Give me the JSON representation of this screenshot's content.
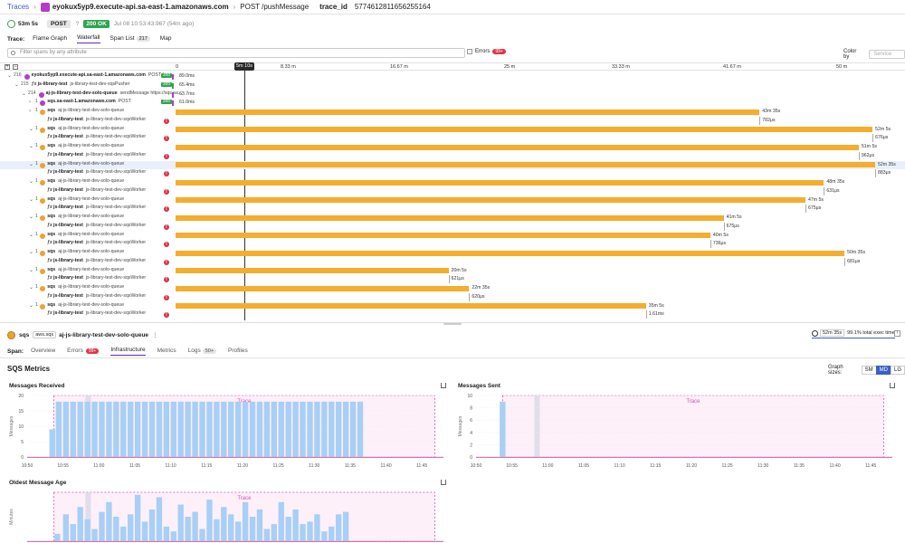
{
  "topbar": {
    "breadcrumb": "Traces",
    "service": "eyokux5yp9.execute-api.sa-east-1.amazonaws.com",
    "resource": "POST /pushMessage",
    "trace_id_label": "trace_id",
    "trace_id": "5774612811656255164"
  },
  "status": {
    "duration": "53m 5s",
    "method": "POST",
    "http_code": "200 OK",
    "timestamp": "Jul 08 10:53:43.967 (54m ago)"
  },
  "trace_tabs": {
    "label": "Trace:",
    "tabs": [
      "Flame Graph",
      "Waterfall",
      "Span List",
      "Map"
    ],
    "span_list_count": "217",
    "active": "Waterfall"
  },
  "filter": {
    "placeholder": "Filter spans by any attribute"
  },
  "errors": {
    "label": "Errors",
    "count": "99+"
  },
  "color_by": {
    "label": "Color by",
    "value": "Service"
  },
  "timeline": {
    "playhead": "5m 10s",
    "ticks": [
      "0",
      "8.33 m",
      "16.67 m",
      "25 m",
      "33.33 m",
      "41.67 m",
      "50 m"
    ]
  },
  "waterfall_rows": [
    {
      "depth": 0,
      "chev": "v",
      "count": "216",
      "icon": "api",
      "service": "eyokux5yp9.execute-api.sa-east-1.amazonaws.com",
      "resource": "POST /pus...",
      "code": "200",
      "dur": "89.0ms",
      "color": "#b53cc8"
    },
    {
      "depth": 1,
      "chev": "v",
      "count": "215",
      "icon": "fx",
      "service": "js-library-test",
      "resource": "js-library-test-dev-sqsPusher",
      "code": "200",
      "dur": "65.4ms",
      "color": "#2ea54d"
    },
    {
      "depth": 2,
      "chev": "v",
      "count": "214",
      "icon": "sqs",
      "service": "aj-js-library-test-dev-solo-queue",
      "resource": "sendMessage https://sqs.sa...",
      "dur": "63.7ms",
      "color": "#b53cc8"
    },
    {
      "depth": 3,
      "chev": ">",
      "count": "1",
      "icon": "sqs",
      "service": "sqs.sa-east-1.amazonaws.com",
      "resource": "POST",
      "code": "200",
      "dur": "61.0ms",
      "color": "#b53cc8"
    },
    {
      "depth": 3,
      "chev": ">",
      "count": "1",
      "icon": "sqs",
      "service": "sqs",
      "resource": "aj-js-library-test-dev-solo-queue",
      "bar": 0.8348,
      "label": "43m 35s"
    },
    {
      "depth": 4,
      "icon": "fx",
      "service": "js-library-test",
      "resource": "js-library-test-dev-sqsWorker",
      "err": true,
      "tick": 0.8348,
      "label": "782μs"
    },
    {
      "depth": 3,
      "chev": "v",
      "count": "1",
      "icon": "sqs",
      "service": "sqs",
      "resource": "aj-js-library-test-dev-solo-queue",
      "bar": 0.9962,
      "label": "52m 5s"
    },
    {
      "depth": 4,
      "icon": "fx",
      "service": "js-library-test",
      "resource": "js-library-test-dev-sqsWorker",
      "err": true,
      "tick": 0.9962,
      "label": "676μs"
    },
    {
      "depth": 3,
      "chev": "v",
      "count": "1",
      "icon": "sqs",
      "service": "sqs",
      "resource": "aj-js-library-test-dev-solo-queue",
      "bar": 0.9766,
      "label": "51m 5s"
    },
    {
      "depth": 4,
      "icon": "fx",
      "service": "js-library-test",
      "resource": "js-library-test-dev-sqsWorker",
      "err": true,
      "tick": 0.9766,
      "label": "962μs"
    },
    {
      "depth": 3,
      "chev": "v",
      "count": "1",
      "icon": "sqs",
      "service": "sqs",
      "resource": "aj-js-library-test-dev-solo-queue",
      "bar": 1.0,
      "label": "52m 35s",
      "hl": true
    },
    {
      "depth": 4,
      "icon": "fx",
      "service": "js-library-test",
      "resource": "js-library-test-dev-sqsWorker",
      "err": true,
      "tick": 1.0,
      "label": "883μs"
    },
    {
      "depth": 3,
      "chev": "v",
      "count": "1",
      "icon": "sqs",
      "service": "sqs",
      "resource": "aj-js-library-test-dev-solo-queue",
      "bar": 0.9268,
      "label": "48m 35s"
    },
    {
      "depth": 4,
      "icon": "fx",
      "service": "js-library-test",
      "resource": "js-library-test-dev-sqsWorker",
      "err": true,
      "tick": 0.9268,
      "label": "631μs"
    },
    {
      "depth": 3,
      "chev": "v",
      "count": "1",
      "icon": "sqs",
      "service": "sqs",
      "resource": "aj-js-library-test-dev-solo-queue",
      "bar": 0.9004,
      "label": "47m 5s"
    },
    {
      "depth": 4,
      "icon": "fx",
      "service": "js-library-test",
      "resource": "js-library-test-dev-sqsWorker",
      "err": true,
      "tick": 0.9004,
      "label": "675μs"
    },
    {
      "depth": 3,
      "chev": "v",
      "count": "1",
      "icon": "sqs",
      "service": "sqs",
      "resource": "aj-js-library-test-dev-solo-queue",
      "bar": 0.7834,
      "label": "41m 5s"
    },
    {
      "depth": 4,
      "icon": "fx",
      "service": "js-library-test",
      "resource": "js-library-test-dev-sqsWorker",
      "err": true,
      "tick": 0.7834,
      "label": "675μs"
    },
    {
      "depth": 3,
      "chev": "v",
      "count": "1",
      "icon": "sqs",
      "service": "sqs",
      "resource": "aj-js-library-test-dev-solo-queue",
      "bar": 0.7644,
      "label": "40m 5s"
    },
    {
      "depth": 4,
      "icon": "fx",
      "service": "js-library-test",
      "resource": "js-library-test-dev-sqsWorker",
      "err": true,
      "tick": 0.7644,
      "label": "736μs"
    },
    {
      "depth": 3,
      "chev": "v",
      "count": "1",
      "icon": "sqs",
      "service": "sqs",
      "resource": "aj-js-library-test-dev-solo-queue",
      "bar": 0.9562,
      "label": "50m 35s"
    },
    {
      "depth": 4,
      "icon": "fx",
      "service": "js-library-test",
      "resource": "js-library-test-dev-sqsWorker",
      "err": true,
      "tick": 0.9562,
      "label": "681μs"
    },
    {
      "depth": 3,
      "chev": "v",
      "count": "1",
      "icon": "sqs",
      "service": "sqs",
      "resource": "aj-js-library-test-dev-solo-queue",
      "bar": 0.3902,
      "label": "20m 5s"
    },
    {
      "depth": 4,
      "icon": "fx",
      "service": "js-library-test",
      "resource": "js-library-test-dev-sqsWorker",
      "err": true,
      "tick": 0.3902,
      "label": "621μs"
    },
    {
      "depth": 3,
      "chev": "v",
      "count": "1",
      "icon": "sqs",
      "service": "sqs",
      "resource": "aj-js-library-test-dev-solo-queue",
      "bar": 0.4196,
      "label": "22m 35s"
    },
    {
      "depth": 4,
      "icon": "fx",
      "service": "js-library-test",
      "resource": "js-library-test-dev-sqsWorker",
      "err": true,
      "tick": 0.4196,
      "label": "620μs"
    },
    {
      "depth": 3,
      "chev": "v",
      "count": "1",
      "icon": "sqs",
      "service": "sqs",
      "resource": "aj-js-library-test-dev-solo-queue",
      "bar": 0.6724,
      "label": "35m 5s"
    },
    {
      "depth": 4,
      "icon": "fx",
      "service": "js-library-test",
      "resource": "js-library-test-dev-sqsWorker",
      "err": true,
      "tick": 0.6724,
      "label": "1.61ms"
    }
  ],
  "span": {
    "label": "Span:",
    "tag": "aws.sqs",
    "name": "aj-js-library-test-dev-solo-queue",
    "exec_time": "52m 35s",
    "exec_pct": "99.1% total exec time",
    "service_icon_label": "sqs"
  },
  "span_tabs": [
    {
      "label": "Overview"
    },
    {
      "label": "Errors",
      "badge": "99+"
    },
    {
      "label": "Infrastructure",
      "active": true
    },
    {
      "label": "Metrics"
    },
    {
      "label": "Logs",
      "badge": "50+"
    },
    {
      "label": "Profiles"
    }
  ],
  "metrics": {
    "title": "SQS Metrics",
    "graph_sizes_label": "Graph sizes:",
    "sizes": [
      "SM",
      "MD",
      "LG"
    ],
    "active_size": "MD",
    "trace_label": "Trace",
    "accent": "#d64bb2",
    "bar_color": "#a8cff5"
  },
  "chart_data": [
    {
      "type": "bar",
      "title": "Messages Received",
      "ylabel": "Messages",
      "ylim": [
        0,
        20
      ],
      "yticks": [
        0,
        5,
        10,
        15,
        20
      ],
      "x_ticks": [
        "10:50",
        "10:55",
        "11:00",
        "11:05",
        "11:10",
        "11:15",
        "11:20",
        "11:25",
        "11:30",
        "11:35",
        "11:40",
        "11:45"
      ],
      "x_start_min": 0,
      "x_end_min": 58,
      "trace_window_min": [
        3.7,
        56.8
      ],
      "bars": [
        [
          3.1,
          9
        ],
        [
          4.0,
          18
        ],
        [
          5.0,
          18
        ],
        [
          6.0,
          18
        ],
        [
          7.0,
          18
        ],
        [
          8.0,
          18
        ],
        [
          9.0,
          18
        ],
        [
          10.0,
          18
        ],
        [
          11.0,
          18
        ],
        [
          12.0,
          18
        ],
        [
          13.0,
          18
        ],
        [
          14.0,
          18
        ],
        [
          15.0,
          18
        ],
        [
          16.0,
          18
        ],
        [
          17.0,
          18
        ],
        [
          18.0,
          18
        ],
        [
          19.0,
          18
        ],
        [
          20.0,
          18
        ],
        [
          21.0,
          18
        ],
        [
          22.0,
          18
        ],
        [
          23.0,
          18
        ],
        [
          24.0,
          18
        ],
        [
          25.0,
          18
        ],
        [
          26.0,
          18
        ],
        [
          27.0,
          18
        ],
        [
          28.0,
          18
        ],
        [
          29.0,
          18
        ],
        [
          30.0,
          18
        ],
        [
          31.0,
          18
        ],
        [
          32.0,
          18
        ],
        [
          33.0,
          18
        ],
        [
          34.0,
          18
        ],
        [
          35.0,
          18
        ],
        [
          36.0,
          18
        ],
        [
          37.0,
          18
        ],
        [
          38.0,
          18
        ],
        [
          39.0,
          18
        ],
        [
          40.0,
          18
        ],
        [
          41.0,
          18
        ],
        [
          42.0,
          18
        ],
        [
          43.0,
          18
        ],
        [
          44.0,
          18
        ],
        [
          45.0,
          18
        ],
        [
          46.0,
          18
        ]
      ],
      "highlight_min": 8.5
    },
    {
      "type": "bar",
      "title": "Messages Sent",
      "ylabel": "Messages",
      "ylim": [
        0,
        10
      ],
      "yticks": [
        0,
        2,
        4,
        6,
        8,
        10
      ],
      "x_ticks": [
        "10:50",
        "10:55",
        "11:00",
        "11:05",
        "11:10",
        "11:15",
        "11:20",
        "11:25",
        "11:30",
        "11:35",
        "11:40",
        "11:45"
      ],
      "x_start_min": 0,
      "x_end_min": 58,
      "trace_window_min": [
        3.7,
        56.8
      ],
      "bars": [
        [
          3.3,
          9
        ]
      ],
      "highlight_min": 8.5
    },
    {
      "type": "bar",
      "title": "Oldest Message Age",
      "ylabel": "Minutes",
      "trace_window_min": [
        3.7,
        56.8
      ],
      "x_start_min": 0,
      "x_end_min": 58,
      "bars": [
        [
          3.8,
          1.5
        ],
        [
          5.0,
          5.5
        ],
        [
          6.0,
          3.5
        ],
        [
          7.0,
          7.0
        ],
        [
          8.0,
          4.5
        ],
        [
          9.0,
          2.5
        ],
        [
          10.0,
          6.0
        ],
        [
          11.0,
          8.0
        ],
        [
          12.0,
          5.0
        ],
        [
          13.0,
          3.0
        ],
        [
          14.0,
          5.5
        ],
        [
          15.0,
          9.5
        ],
        [
          16.0,
          4.0
        ],
        [
          17.0,
          6.5
        ],
        [
          18.0,
          9.0
        ],
        [
          19.0,
          3.0
        ],
        [
          20.0,
          2.0
        ],
        [
          21.0,
          7.5
        ],
        [
          22.0,
          5.0
        ],
        [
          23.0,
          6.0
        ],
        [
          24.0,
          2.5
        ],
        [
          25.0,
          8.5
        ],
        [
          26.0,
          4.5
        ],
        [
          27.0,
          7.0
        ],
        [
          28.0,
          5.5
        ],
        [
          29.0,
          4.0
        ],
        [
          30.0,
          8.0
        ],
        [
          31.0,
          5.0
        ],
        [
          32.0,
          6.5
        ],
        [
          33.0,
          2.5
        ],
        [
          34.0,
          3.5
        ],
        [
          35.0,
          8.0
        ],
        [
          36.0,
          5.0
        ],
        [
          37.0,
          6.5
        ],
        [
          38.0,
          3.5
        ],
        [
          39.0,
          4.0
        ],
        [
          40.0,
          5.5
        ],
        [
          41.0,
          2.0
        ],
        [
          42.0,
          3.0
        ],
        [
          43.0,
          5.5
        ],
        [
          44.0,
          6.0
        ]
      ],
      "highlight_min": 8.5,
      "ylim": [
        0,
        10
      ]
    }
  ]
}
